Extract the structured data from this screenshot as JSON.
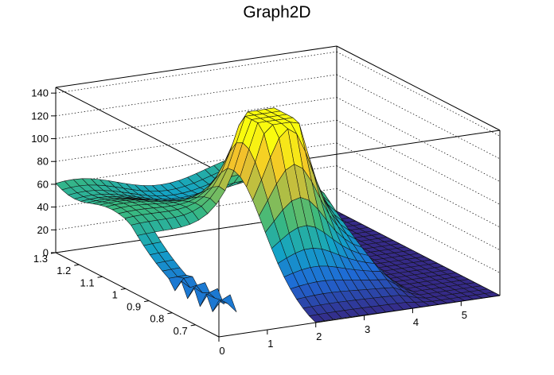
{
  "chart_data": {
    "type": "surface3d",
    "title": "Graph2D",
    "xlabel": "",
    "ylabel": "",
    "zlabel": "",
    "xlim": [
      0,
      5.8
    ],
    "ylim": [
      0.6,
      1.3
    ],
    "zlim": [
      0,
      145
    ],
    "x_ticks": [
      "0",
      "1",
      "2",
      "3",
      "4",
      "5"
    ],
    "y_ticks": [
      "0.7",
      "0.8",
      "0.9",
      "1",
      "1.1",
      "1.2",
      "1.3"
    ],
    "z_ticks": [
      "0",
      "20",
      "40",
      "60",
      "80",
      "100",
      "120",
      "140"
    ],
    "grid": true,
    "colormap": [
      "#352a87",
      "#1f6ad6",
      "#13a3c6",
      "#3ab97e",
      "#a4be49",
      "#f3c12b",
      "#f9fb0e"
    ],
    "surface_description_values": {
      "peak_z": 128,
      "peak_x": 2.8,
      "peak_y": 0.95,
      "back_plateau_z": 55,
      "hole_x_range": [
        0.4,
        2.0
      ],
      "hole_y_range": [
        0.6,
        0.95
      ]
    }
  }
}
